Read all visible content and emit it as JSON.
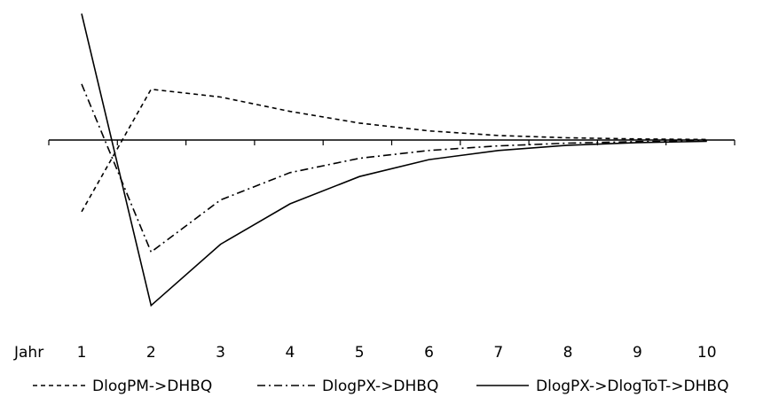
{
  "chart_data": {
    "type": "line",
    "x_label": "Jahr",
    "categories": [
      "1",
      "2",
      "3",
      "4",
      "5",
      "6",
      "7",
      "8",
      "9",
      "10"
    ],
    "grid": false,
    "legend_position": "bottom",
    "ylim": [
      -1.0,
      1.0
    ],
    "series": [
      {
        "name": "DlogPM->DHBQ",
        "dash": "dashed",
        "color": "#000000",
        "values": [
          -0.55,
          0.39,
          0.33,
          0.22,
          0.13,
          0.07,
          0.035,
          0.017,
          0.008,
          0.004
        ]
      },
      {
        "name": "DlogPX->DHBQ",
        "dash": "dashdot",
        "color": "#000000",
        "values": [
          0.43,
          -0.86,
          -0.46,
          -0.25,
          -0.14,
          -0.08,
          -0.045,
          -0.024,
          -0.012,
          -0.006
        ]
      },
      {
        "name": "DlogPX->DlogToT->DHBQ",
        "dash": "solid",
        "color": "#000000",
        "values": [
          0.97,
          -1.27,
          -0.8,
          -0.49,
          -0.28,
          -0.15,
          -0.08,
          -0.04,
          -0.02,
          -0.01
        ]
      }
    ]
  }
}
